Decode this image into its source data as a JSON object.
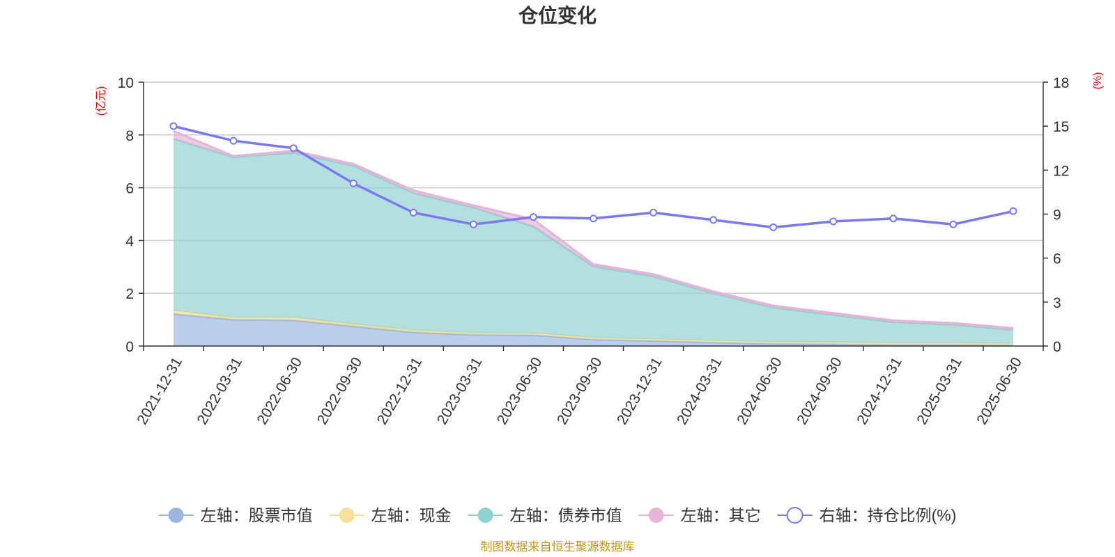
{
  "title": "仓位变化",
  "source_note": "制图数据来自恒生聚源数据库",
  "chart_data": {
    "type": "area",
    "title": "仓位变化",
    "categories": [
      "2021-12-31",
      "2022-03-31",
      "2022-06-30",
      "2022-09-30",
      "2022-12-31",
      "2023-03-31",
      "2023-06-30",
      "2023-09-30",
      "2023-12-31",
      "2024-03-31",
      "2024-06-30",
      "2024-09-30",
      "2024-12-31",
      "2025-03-31",
      "2025-06-30"
    ],
    "left_axis": {
      "unit": "(亿元)",
      "ylim": [
        0,
        10
      ],
      "ticks": [
        0,
        2,
        4,
        6,
        8,
        10
      ]
    },
    "right_axis": {
      "unit": "(%)",
      "ylim": [
        0,
        18
      ],
      "ticks": [
        0,
        3,
        6,
        9,
        12,
        15,
        18
      ]
    },
    "stacked": true,
    "grid": true,
    "legend_position": "bottom",
    "series": [
      {
        "name": "左轴：股票市值",
        "axis": "left",
        "type": "area",
        "color": "#9ab5e0",
        "values": [
          1.22,
          1.0,
          0.98,
          0.75,
          0.52,
          0.43,
          0.42,
          0.25,
          0.2,
          0.14,
          0.09,
          0.07,
          0.05,
          0.05,
          0.04
        ]
      },
      {
        "name": "左轴：现金",
        "axis": "left",
        "type": "area",
        "color": "#f5e19a",
        "values": [
          0.13,
          0.08,
          0.1,
          0.08,
          0.08,
          0.07,
          0.06,
          0.07,
          0.06,
          0.06,
          0.07,
          0.07,
          0.06,
          0.06,
          0.05
        ]
      },
      {
        "name": "左轴：债券市值",
        "axis": "left",
        "type": "area",
        "color": "#8fd1d0",
        "values": [
          6.5,
          6.08,
          6.25,
          6.0,
          5.2,
          4.75,
          4.05,
          2.7,
          2.38,
          1.8,
          1.3,
          1.04,
          0.8,
          0.7,
          0.53
        ]
      },
      {
        "name": "左轴：其它",
        "axis": "left",
        "type": "area",
        "color": "#e6b3d9",
        "values": [
          0.3,
          0.04,
          0.07,
          0.07,
          0.1,
          0.08,
          0.27,
          0.08,
          0.08,
          0.07,
          0.07,
          0.07,
          0.06,
          0.06,
          0.06
        ]
      },
      {
        "name": "右轴：持仓比例(%)",
        "axis": "right",
        "type": "line",
        "color": "#7a78f2",
        "values": [
          15.0,
          14.0,
          13.5,
          11.1,
          9.1,
          8.3,
          8.8,
          8.7,
          9.1,
          8.6,
          8.1,
          8.5,
          8.7,
          8.3,
          9.2
        ]
      }
    ]
  }
}
